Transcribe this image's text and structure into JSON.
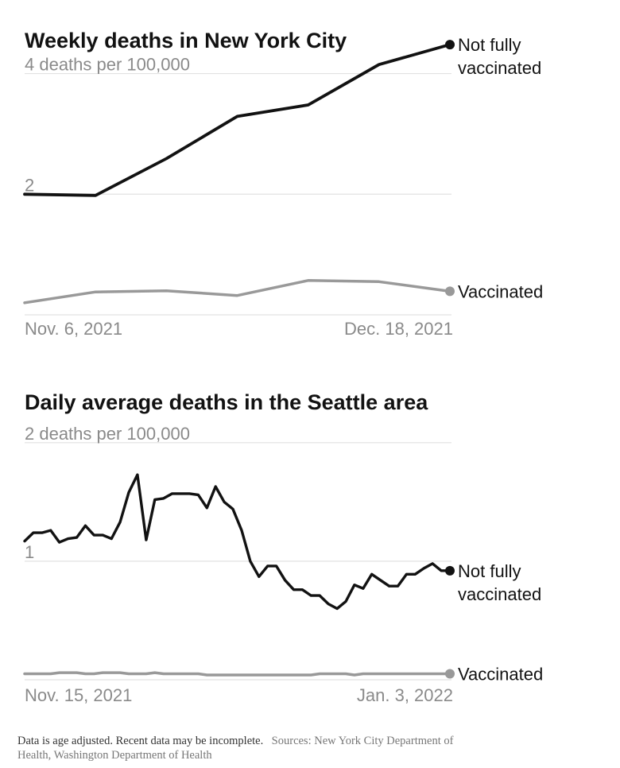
{
  "colors": {
    "not_fully_vaccinated": "#121212",
    "vaccinated": "#999999",
    "axis_text": "#8a8a8a",
    "gridline": "#e2e2e2"
  },
  "chart_data": [
    {
      "type": "line",
      "title": "Weekly deaths in New York City",
      "y_ticks": [
        2,
        4
      ],
      "y_tick_labels": [
        "2",
        "4 deaths per 100,000"
      ],
      "ylim": [
        0,
        4.35
      ],
      "x_labels": [
        "Nov. 6, 2021",
        "Dec. 18, 2021"
      ],
      "x": [
        "2021-11-06",
        "2021-11-13",
        "2021-11-20",
        "2021-11-27",
        "2021-12-04",
        "2021-12-11",
        "2021-12-18"
      ],
      "grid": true,
      "series": [
        {
          "name": "Not fully vaccinated",
          "label_lines": [
            "Not fully",
            "vaccinated"
          ],
          "values": [
            2.0,
            1.98,
            2.59,
            3.29,
            3.48,
            4.15,
            4.48
          ]
        },
        {
          "name": "Vaccinated",
          "label_lines": [
            "Vaccinated"
          ],
          "values": [
            0.2,
            0.38,
            0.4,
            0.32,
            0.57,
            0.55,
            0.39
          ]
        }
      ]
    },
    {
      "type": "line",
      "title": "Daily average deaths in the Seattle area",
      "y_ticks": [
        1,
        2
      ],
      "y_tick_labels": [
        "1",
        "2 deaths per 100,000"
      ],
      "ylim": [
        0,
        2.2
      ],
      "x_labels": [
        "Nov. 15, 2021",
        "Jan. 3, 2022"
      ],
      "x_start": "2021-11-15",
      "x_end": "2022-01-03",
      "grid": true,
      "series": [
        {
          "name": "Not fully vaccinated",
          "label_lines": [
            "Not fully",
            "vaccinated"
          ],
          "values": [
            1.17,
            1.24,
            1.24,
            1.26,
            1.16,
            1.19,
            1.2,
            1.3,
            1.22,
            1.22,
            1.19,
            1.33,
            1.58,
            1.73,
            1.18,
            1.52,
            1.53,
            1.57,
            1.57,
            1.57,
            1.56,
            1.45,
            1.63,
            1.5,
            1.44,
            1.26,
            1.0,
            0.87,
            0.96,
            0.96,
            0.84,
            0.76,
            0.76,
            0.71,
            0.71,
            0.64,
            0.6,
            0.66,
            0.8,
            0.77,
            0.89,
            0.84,
            0.79,
            0.79,
            0.89,
            0.89,
            0.94,
            0.98,
            0.92,
            0.92
          ]
        },
        {
          "name": "Vaccinated",
          "label_lines": [
            "Vaccinated"
          ],
          "values": [
            0.05,
            0.05,
            0.05,
            0.05,
            0.06,
            0.06,
            0.06,
            0.05,
            0.05,
            0.06,
            0.06,
            0.06,
            0.05,
            0.05,
            0.05,
            0.06,
            0.05,
            0.05,
            0.05,
            0.05,
            0.05,
            0.04,
            0.04,
            0.04,
            0.04,
            0.04,
            0.04,
            0.04,
            0.04,
            0.04,
            0.04,
            0.04,
            0.04,
            0.04,
            0.05,
            0.05,
            0.05,
            0.05,
            0.04,
            0.05,
            0.05,
            0.05,
            0.05,
            0.05,
            0.05,
            0.05,
            0.05,
            0.05,
            0.05,
            0.05
          ]
        }
      ]
    }
  ],
  "footer": {
    "note": "Data is age adjusted. Recent data may be incomplete.",
    "sources_line1": "Sources: New York City Department of",
    "sources_line2": "Health, Washington Department of Health"
  }
}
